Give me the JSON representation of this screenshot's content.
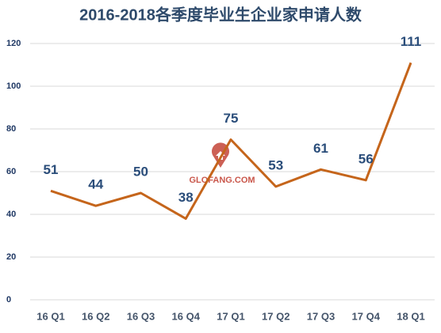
{
  "chart_data": {
    "type": "line",
    "title": "2016-2018各季度毕业生企业家申请人数",
    "categories": [
      "16 Q1",
      "16 Q2",
      "16 Q3",
      "16 Q4",
      "17 Q1",
      "17 Q2",
      "17 Q3",
      "17 Q4",
      "18 Q1"
    ],
    "values": [
      51,
      44,
      50,
      38,
      75,
      53,
      61,
      56,
      111
    ],
    "color": "#c5651b",
    "ylim": [
      0,
      120
    ],
    "yticks": [
      0,
      20,
      40,
      60,
      80,
      100,
      120
    ],
    "grid": true,
    "watermark": "GLOFANG.COM"
  }
}
